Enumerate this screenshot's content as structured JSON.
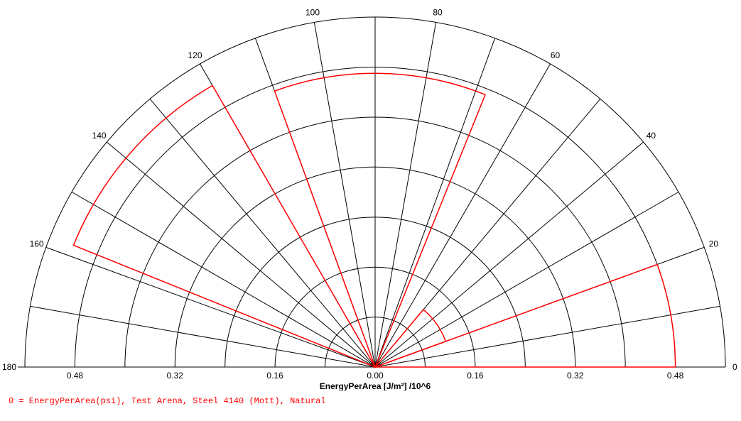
{
  "chart_data": {
    "type": "polar",
    "angle_unit": "degrees",
    "angle_range": [
      0,
      180
    ],
    "angle_ticks": [
      "0",
      "20",
      "40",
      "60",
      "80",
      "100",
      "120",
      "140",
      "160",
      "180"
    ],
    "spoke_step_deg": 10,
    "radial_max": 0.56,
    "radial_ring_step": 0.08,
    "radial_tick_labels_left": [
      "0.48",
      "0.32",
      "0.16"
    ],
    "radial_tick_labels_right": [
      "0.16",
      "0.32",
      "0.48"
    ],
    "center_label": "0.00",
    "xlabel": "EnergyPerArea [J/m²] /10^6",
    "grid": true,
    "series_color": "#ff0000",
    "series": [
      {
        "name": "0 = EnergyPerArea(psi), Test Arena, Steel 4140 (Mott), Natural",
        "sectors": [
          {
            "start_deg": 0,
            "end_deg": 20,
            "radius": 0.48
          },
          {
            "start_deg": 20,
            "end_deg": 50,
            "radius": 0.12
          },
          {
            "start_deg": 68,
            "end_deg": 110,
            "radius": 0.47
          },
          {
            "start_deg": 120,
            "end_deg": 158,
            "radius": 0.52
          }
        ]
      }
    ]
  },
  "legend": {
    "text": "0 = EnergyPerArea(psi), Test Arena, Steel 4140 (Mott), Natural"
  }
}
